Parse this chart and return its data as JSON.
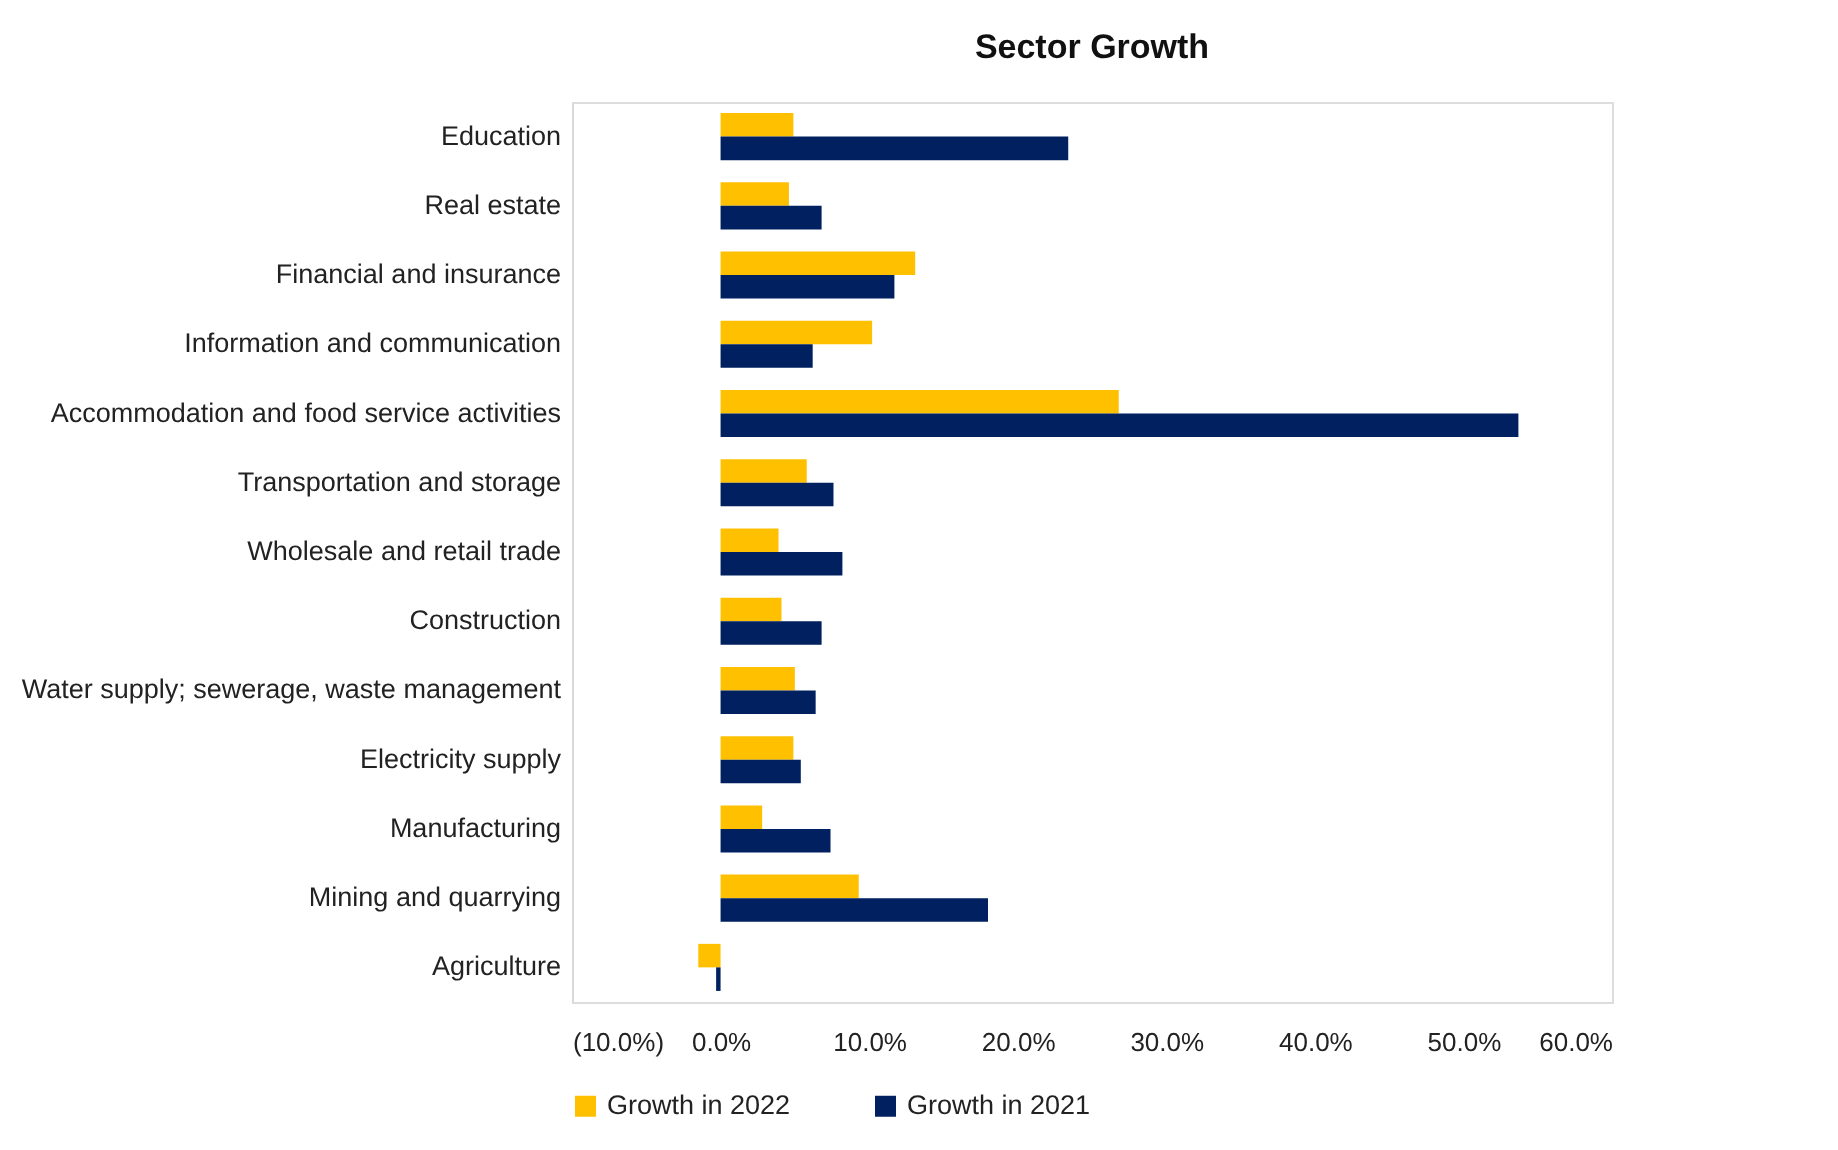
{
  "chart_data": {
    "type": "bar",
    "orientation": "horizontal",
    "title": "Sector Growth",
    "categories": [
      "Education",
      "Real estate",
      "Financial and insurance",
      "Information and communication",
      "Accommodation and food service activities",
      "Transportation and storage",
      "Wholesale and retail trade",
      "Construction",
      "Water supply; sewerage, waste management",
      "Electricity supply",
      "Manufacturing",
      "Mining and quarrying",
      "Agriculture"
    ],
    "series": [
      {
        "name": "Growth in 2022",
        "color": "#ffc000",
        "values": [
          4.9,
          4.6,
          13.1,
          10.2,
          26.8,
          5.8,
          3.9,
          4.1,
          5.0,
          4.9,
          2.8,
          9.3,
          -1.5
        ]
      },
      {
        "name": "Growth in 2021",
        "color": "#002060",
        "values": [
          23.4,
          6.8,
          11.7,
          6.2,
          53.7,
          7.6,
          8.2,
          6.8,
          6.4,
          5.4,
          7.4,
          18.0,
          -0.3
        ]
      }
    ],
    "xlim": [
      -10,
      60
    ],
    "xticks": [
      {
        "value": -10,
        "label": "(10.0%)"
      },
      {
        "value": 0,
        "label": "0.0%"
      },
      {
        "value": 10,
        "label": "10.0%"
      },
      {
        "value": 20,
        "label": "20.0%"
      },
      {
        "value": 30,
        "label": "30.0%"
      },
      {
        "value": 40,
        "label": "40.0%"
      },
      {
        "value": 50,
        "label": "50.0%"
      },
      {
        "value": 60,
        "label": "60.0%"
      }
    ],
    "legend": "bottom",
    "grid": false
  }
}
